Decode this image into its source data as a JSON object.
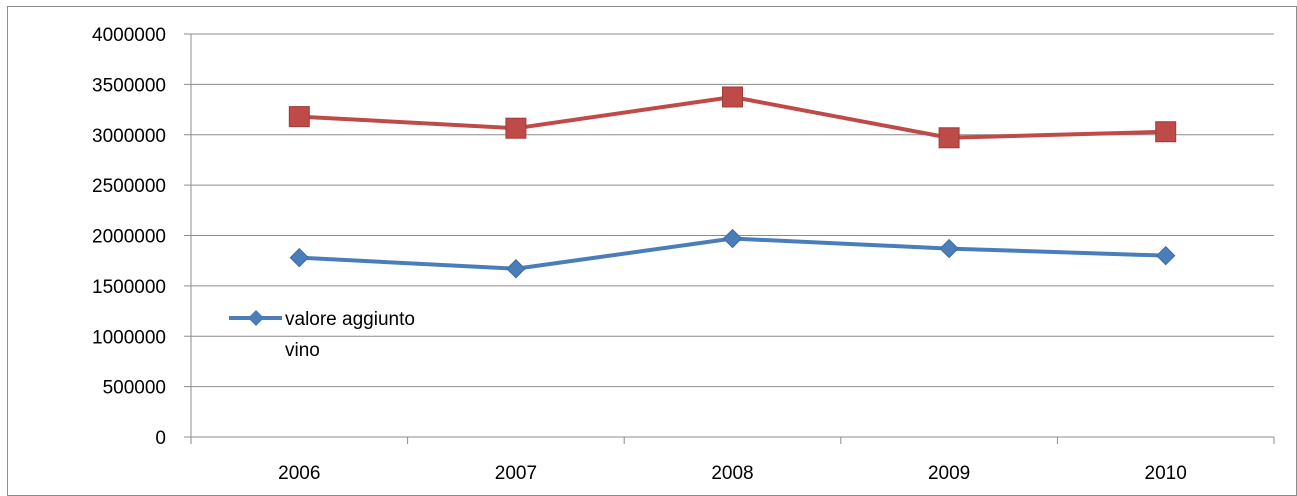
{
  "chart_data": {
    "type": "line",
    "title": "",
    "xlabel": "",
    "ylabel": "",
    "categories": [
      "2006",
      "2007",
      "2008",
      "2009",
      "2010"
    ],
    "ylim": [
      0,
      4000000
    ],
    "yticks": [
      "0",
      "500000",
      "1000000",
      "1500000",
      "2000000",
      "2500000",
      "3000000",
      "3500000",
      "4000000"
    ],
    "grid": true,
    "legend": {
      "placement": "left-center",
      "entries": [
        {
          "line1": "valore aggiunto",
          "line2": "vino",
          "series_index": 0
        }
      ]
    },
    "series": [
      {
        "name": "valore aggiunto vino",
        "color": "#4a7ebb",
        "marker": "diamond",
        "values": [
          1780000,
          1670000,
          1970000,
          1870000,
          1800000
        ]
      },
      {
        "color": "#be4b48",
        "marker": "square",
        "values": [
          3180000,
          3065000,
          3375000,
          2970000,
          3030000
        ]
      }
    ]
  }
}
